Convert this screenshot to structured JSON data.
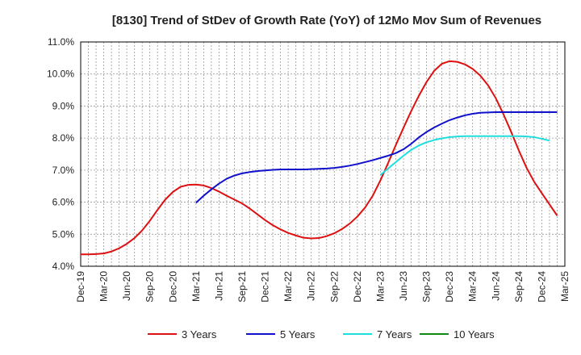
{
  "chart_data": {
    "type": "line",
    "title": "[8130]  Trend of StDev of Growth Rate (YoY) of 12Mo Mov Sum of Revenues",
    "xlabel": "",
    "ylabel": "",
    "ylim": [
      4.0,
      11.0
    ],
    "yticks": [
      "4.0%",
      "5.0%",
      "6.0%",
      "7.0%",
      "8.0%",
      "9.0%",
      "10.0%",
      "11.0%"
    ],
    "xticks": [
      "Dec-19",
      "Mar-20",
      "Jun-20",
      "Sep-20",
      "Dec-20",
      "Mar-21",
      "Jun-21",
      "Sep-21",
      "Dec-21",
      "Mar-22",
      "Jun-22",
      "Sep-22",
      "Dec-22",
      "Mar-23",
      "Jun-23",
      "Sep-23",
      "Dec-23",
      "Mar-24",
      "Jun-24",
      "Sep-24",
      "Dec-24",
      "Mar-25"
    ],
    "grid": true,
    "legend_position": "bottom",
    "series": [
      {
        "name": "3 Years",
        "color": "#dd1111",
        "start_month": 0,
        "values": [
          4.37,
          4.37,
          4.38,
          4.4,
          4.46,
          4.56,
          4.7,
          4.88,
          5.12,
          5.42,
          5.76,
          6.08,
          6.32,
          6.48,
          6.54,
          6.55,
          6.52,
          6.44,
          6.33,
          6.2,
          6.08,
          5.96,
          5.8,
          5.62,
          5.44,
          5.28,
          5.15,
          5.04,
          4.96,
          4.89,
          4.87,
          4.88,
          4.94,
          5.03,
          5.16,
          5.33,
          5.55,
          5.83,
          6.2,
          6.68,
          7.22,
          7.78,
          8.32,
          8.84,
          9.32,
          9.75,
          10.1,
          10.32,
          10.4,
          10.38,
          10.3,
          10.16,
          9.95,
          9.65,
          9.25,
          8.75,
          8.2,
          7.62,
          7.08,
          6.64,
          6.28,
          5.93,
          5.58
        ]
      },
      {
        "name": "5 Years",
        "color": "#1111cc",
        "start_month": 15,
        "values": [
          5.98,
          6.2,
          6.4,
          6.58,
          6.73,
          6.83,
          6.9,
          6.94,
          6.97,
          6.99,
          7.01,
          7.02,
          7.02,
          7.02,
          7.02,
          7.03,
          7.04,
          7.05,
          7.07,
          7.1,
          7.14,
          7.19,
          7.25,
          7.31,
          7.38,
          7.45,
          7.53,
          7.65,
          7.82,
          8.02,
          8.19,
          8.33,
          8.45,
          8.56,
          8.64,
          8.71,
          8.76,
          8.79,
          8.8,
          8.81,
          8.81,
          8.81,
          8.81,
          8.81,
          8.81,
          8.81,
          8.81,
          8.81
        ]
      },
      {
        "name": "7 Years",
        "color": "#22dddd",
        "start_month": 39,
        "values": [
          6.85,
          7.05,
          7.25,
          7.45,
          7.63,
          7.77,
          7.87,
          7.94,
          7.99,
          8.03,
          8.05,
          8.06,
          8.06,
          8.06,
          8.06,
          8.06,
          8.06,
          8.06,
          8.06,
          8.05,
          8.03,
          7.98,
          7.92
        ]
      },
      {
        "name": "10 Years",
        "color": "#118811",
        "start_month": 0,
        "values": []
      }
    ]
  }
}
